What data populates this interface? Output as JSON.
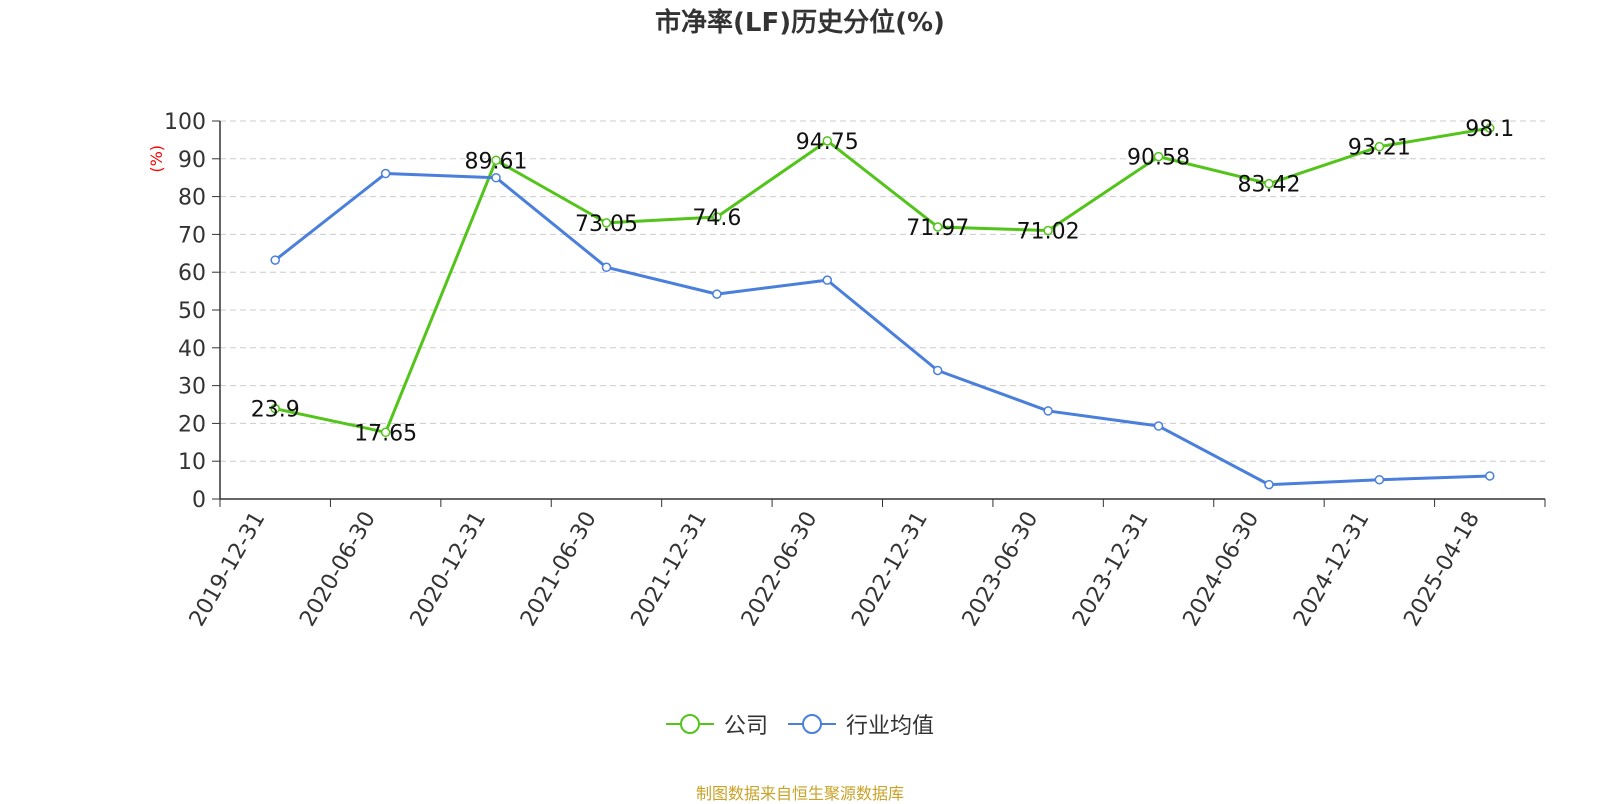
{
  "chart_data": {
    "type": "line",
    "title": "市净率(LF)历史分位(%)",
    "ylabel": "(%)",
    "xlabel": "",
    "ylim": [
      0,
      100
    ],
    "yticks": [
      0,
      10,
      20,
      30,
      40,
      50,
      60,
      70,
      80,
      90,
      100
    ],
    "categories": [
      "2019-12-31",
      "2020-06-30",
      "2020-12-31",
      "2021-06-30",
      "2021-12-31",
      "2022-06-30",
      "2022-12-31",
      "2023-06-30",
      "2023-12-31",
      "2024-06-30",
      "2024-12-31",
      "2025-04-18"
    ],
    "grid": true,
    "legend_position": "bottom",
    "series": [
      {
        "name": "公司",
        "color": "#52c41a",
        "values": [
          23.9,
          17.65,
          89.61,
          73.05,
          74.6,
          94.75,
          71.97,
          71.02,
          90.58,
          83.42,
          93.21,
          98.1
        ],
        "labels": [
          "23.9",
          "17.65",
          "89.61",
          "73.05",
          "74.6",
          "94.75",
          "71.97",
          "71.02",
          "90.58",
          "83.42",
          "93.21",
          "98.1"
        ]
      },
      {
        "name": "行业均值",
        "color": "#4a7fdc",
        "values": [
          63.2,
          86.1,
          85.0,
          61.3,
          54.2,
          57.9,
          34.0,
          23.3,
          19.3,
          3.8,
          5.1,
          6.1
        ]
      }
    ]
  },
  "source": "制图数据来自恒生聚源数据库",
  "colors": {
    "ylabel": "#ff0000",
    "source": "#c9a227",
    "grid": "#cccccc"
  }
}
